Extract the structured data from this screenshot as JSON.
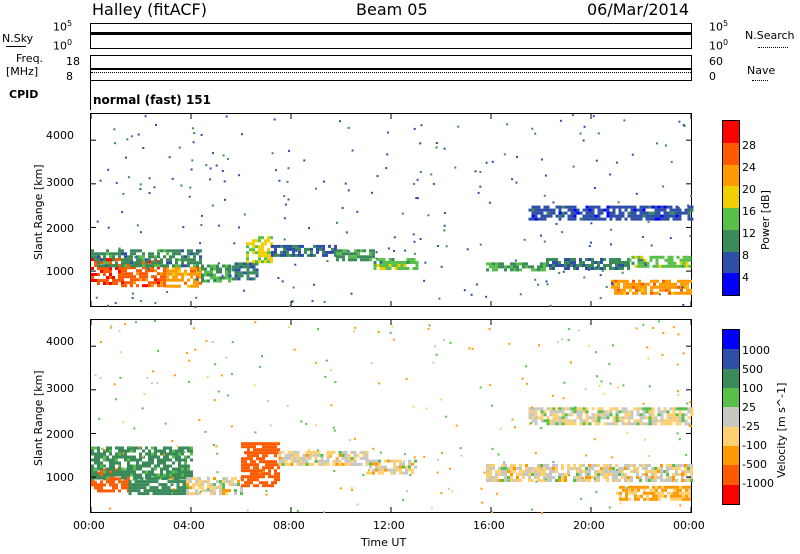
{
  "header": {
    "station": "Halley (fitACF)",
    "beam": "Beam 05",
    "date": "06/Mar/2014"
  },
  "strips": {
    "nsky_label": "N.Sky",
    "nsky_left_ticks": [
      "10^5",
      "10^0"
    ],
    "nsearch_label": "N.Search",
    "nsearch_right_ticks": [
      "10^5",
      "10^0"
    ],
    "freq_label_line1": "Freq.",
    "freq_label_line2": "[MHz]",
    "freq_left_ticks": [
      "18",
      "8"
    ],
    "nave_label": "Nave",
    "nave_right_ticks": [
      "60",
      "0"
    ],
    "cpid_label": "CPID",
    "cpid_value": "normal (fast) 151"
  },
  "colors": {
    "power_scale": [
      "#0000ff",
      "#2e4fa8",
      "#3a8a5a",
      "#58c04a",
      "#f0d000",
      "#ff9a00",
      "#ff5a00",
      "#ff0000"
    ],
    "velocity_scale": [
      "#ff0000",
      "#ff5a00",
      "#ff9a00",
      "#ffd070",
      "#c8c8c0",
      "#58c04a",
      "#3a8a5a",
      "#2e4fa8",
      "#0000ff"
    ]
  },
  "chart_data": [
    {
      "type": "heatmap",
      "name": "power",
      "ylabel": "Slant Range [km]",
      "yticks": [
        "4000",
        "3000",
        "2000",
        "1000"
      ],
      "ylim": [
        200,
        4600
      ],
      "xlim": [
        0,
        24
      ],
      "colorbar_label": "Power [dB]",
      "colorbar_ticks": [
        "28",
        "24",
        "20",
        "16",
        "12",
        "8",
        "4"
      ],
      "colorbar_range": [
        0,
        32
      ],
      "regions": [
        {
          "x": [
            0.0,
            1.2
          ],
          "y": [
            700,
            1300
          ],
          "value": 28
        },
        {
          "x": [
            1.2,
            3.0
          ],
          "y": [
            650,
            1250
          ],
          "value": 26
        },
        {
          "x": [
            3.0,
            4.4
          ],
          "y": [
            650,
            1100
          ],
          "value": 22
        },
        {
          "x": [
            0.0,
            4.4
          ],
          "y": [
            1150,
            1500
          ],
          "value": 10
        },
        {
          "x": [
            4.4,
            5.5
          ],
          "y": [
            750,
            1150
          ],
          "value": 12
        },
        {
          "x": [
            5.5,
            6.6
          ],
          "y": [
            800,
            1200
          ],
          "value": 9
        },
        {
          "x": [
            6.2,
            7.2
          ],
          "y": [
            1200,
            1800
          ],
          "value": 17
        },
        {
          "x": [
            7.2,
            9.8
          ],
          "y": [
            1350,
            1600
          ],
          "value": 8
        },
        {
          "x": [
            9.8,
            11.3
          ],
          "y": [
            1250,
            1500
          ],
          "value": 11
        },
        {
          "x": [
            11.3,
            13.0
          ],
          "y": [
            1050,
            1300
          ],
          "value": 14
        },
        {
          "x": [
            15.8,
            18.2
          ],
          "y": [
            1000,
            1200
          ],
          "value": 12
        },
        {
          "x": [
            18.2,
            21.5
          ],
          "y": [
            1050,
            1300
          ],
          "value": 9
        },
        {
          "x": [
            21.5,
            24.0
          ],
          "y": [
            1100,
            1350
          ],
          "value": 14
        },
        {
          "x": [
            20.8,
            24.0
          ],
          "y": [
            500,
            800
          ],
          "value": 22
        },
        {
          "x": [
            17.5,
            24.0
          ],
          "y": [
            2200,
            2500
          ],
          "value": 6
        }
      ]
    },
    {
      "type": "heatmap",
      "name": "velocity",
      "ylabel": "Slant Range [km]",
      "yticks": [
        "4000",
        "3000",
        "2000",
        "1000"
      ],
      "ylim": [
        200,
        4600
      ],
      "xlim": [
        0,
        24
      ],
      "xlabel": "Time UT",
      "xticks": [
        "00:00",
        "04:00",
        "08:00",
        "12:00",
        "16:00",
        "20:00",
        "00:00"
      ],
      "colorbar_label": "Velocity [m s^-1]",
      "colorbar_ticks": [
        "1000",
        "500",
        "100",
        "25",
        "-25",
        "-100",
        "-500",
        "-1000"
      ],
      "regions": [
        {
          "x": [
            0.0,
            1.5
          ],
          "y": [
            700,
            1200
          ],
          "value": -200
        },
        {
          "x": [
            0.0,
            4.0
          ],
          "y": [
            1000,
            1700
          ],
          "value": 120
        },
        {
          "x": [
            1.5,
            3.8
          ],
          "y": [
            600,
            1000
          ],
          "value": 150
        },
        {
          "x": [
            3.8,
            6.0
          ],
          "y": [
            650,
            1000
          ],
          "value": 0
        },
        {
          "x": [
            6.0,
            7.5
          ],
          "y": [
            800,
            1800
          ],
          "value": -150
        },
        {
          "x": [
            7.5,
            11.0
          ],
          "y": [
            1300,
            1600
          ],
          "value": 0
        },
        {
          "x": [
            11.0,
            13.0
          ],
          "y": [
            1100,
            1400
          ],
          "value": 0
        },
        {
          "x": [
            15.8,
            24.0
          ],
          "y": [
            900,
            1300
          ],
          "value": 0
        },
        {
          "x": [
            21.0,
            24.0
          ],
          "y": [
            500,
            800
          ],
          "value": -40
        },
        {
          "x": [
            17.5,
            24.0
          ],
          "y": [
            2200,
            2600
          ],
          "value": 5
        }
      ]
    }
  ]
}
